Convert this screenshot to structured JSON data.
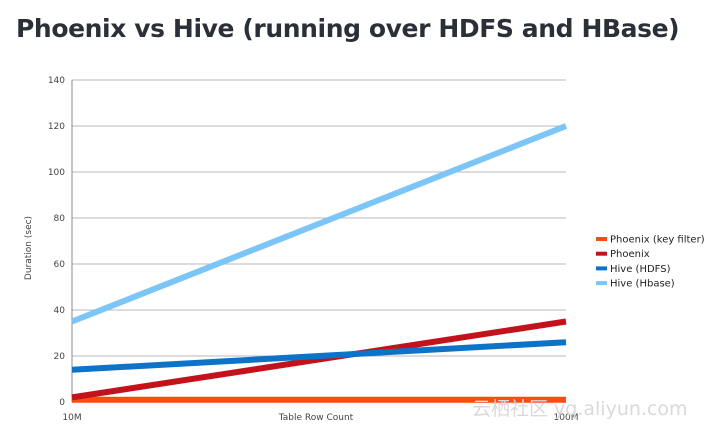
{
  "page": {
    "title": "Phoenix vs Hive (running over HDFS and HBase)"
  },
  "watermark": "云栖社区 yq.aliyun.com",
  "chart_data": {
    "type": "line",
    "title": "Phoenix vs Hive (running over HDFS and HBase)",
    "xlabel": "Table Row Count",
    "ylabel": "Duration (sec)",
    "categories": [
      "10M",
      "100M"
    ],
    "ylim": [
      0,
      140
    ],
    "yticks": [
      0,
      20,
      40,
      60,
      80,
      100,
      120,
      140
    ],
    "grid": true,
    "legend_position": "right",
    "series": [
      {
        "name": "Phoenix (key filter)",
        "values": [
          1,
          1
        ],
        "color": "#ff4b12"
      },
      {
        "name": "Phoenix",
        "values": [
          2,
          35
        ],
        "color": "#c4121d"
      },
      {
        "name": "Hive (HDFS)",
        "values": [
          14,
          26
        ],
        "color": "#0d73c8"
      },
      {
        "name": "Hive (Hbase)",
        "values": [
          35,
          120
        ],
        "color": "#7cc5f7"
      }
    ]
  }
}
